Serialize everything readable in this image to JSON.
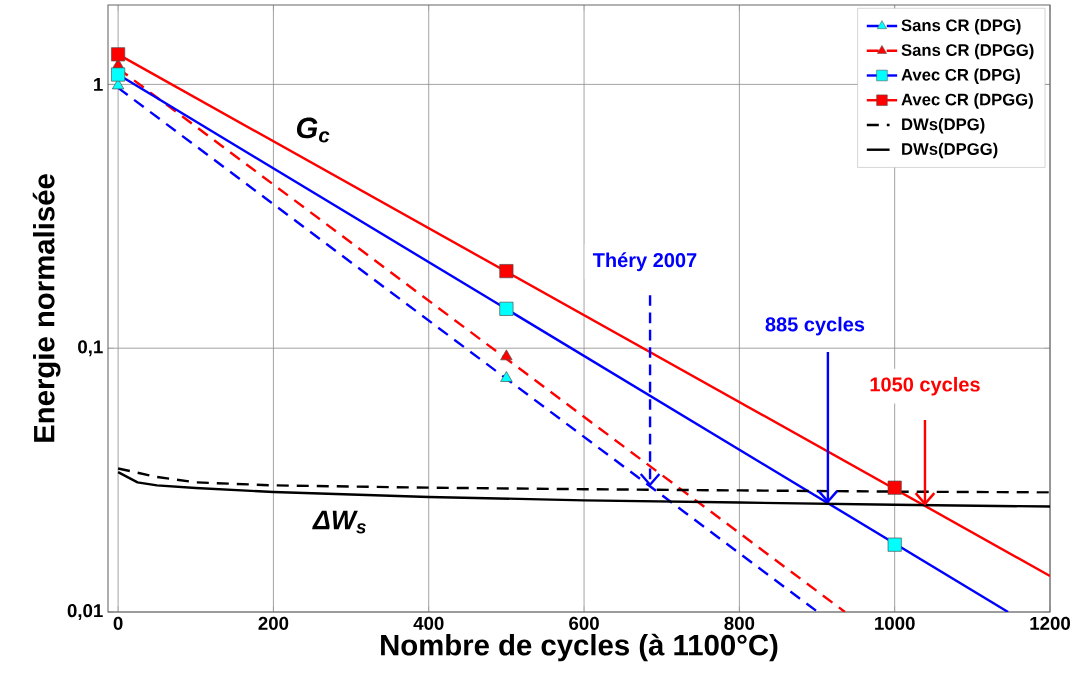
{
  "chart_data": {
    "type": "line",
    "xlabel": "Nombre de cycles (à 1100°C)",
    "ylabel": "Energie normalisée",
    "xlim": [
      -13,
      1200
    ],
    "xticks": [
      0,
      200,
      400,
      600,
      800,
      1000,
      1200
    ],
    "ylim": [
      0.01,
      2
    ],
    "yticks": [
      {
        "value": 0.01,
        "label": "0,01"
      },
      {
        "value": 0.1,
        "label": "0,1"
      },
      1
    ],
    "log": "y",
    "grid": true,
    "legend": "top right",
    "series": [
      {
        "color": "#0000ff",
        "line_style": "dashed",
        "x": [
          0,
          901
        ],
        "values": [
          0.97,
          0.01
        ]
      },
      {
        "color": "#ff0000",
        "line_style": "dashed",
        "x": [
          0,
          936
        ],
        "values": [
          1.15,
          0.01
        ]
      },
      {
        "color": "#0000ff",
        "line_style": "solid",
        "x": [
          0,
          1146
        ],
        "values": [
          1.09,
          0.01
        ]
      },
      {
        "color": "#ff0000",
        "line_style": "solid",
        "x": [
          0,
          1200
        ],
        "values": [
          1.3,
          0.0137
        ]
      },
      {
        "name": "Sans CR (DPG)",
        "type": "scatter",
        "color": "#00ffff",
        "marker": "triangle",
        "line_style": "dashed",
        "x": [
          0,
          500
        ],
        "values": [
          0.99,
          0.077
        ]
      },
      {
        "name": "Sans CR (DPGG)",
        "type": "scatter",
        "color": "#ff0000",
        "marker": "triangle",
        "line_style": "dashed",
        "x": [
          0,
          500
        ],
        "values": [
          1.18,
          0.093
        ]
      },
      {
        "name": "Avec CR (DPG)",
        "type": "scatter",
        "color": "#00ffff",
        "marker": "square",
        "line_style": "solid",
        "x": [
          0,
          500,
          1000
        ],
        "values": [
          1.09,
          0.141,
          0.018
        ]
      },
      {
        "name": "Avec CR (DPGG)",
        "type": "scatter",
        "color": "#ff0000",
        "marker": "square",
        "line_style": "solid",
        "x": [
          0,
          500,
          1000
        ],
        "values": [
          1.3,
          0.196,
          0.0296
        ]
      },
      {
        "name": "DWs(DPG)",
        "color": "#000000",
        "line_style": "dashed",
        "x": [
          0,
          50,
          100,
          200,
          400,
          600,
          800,
          1000,
          1200
        ],
        "values": [
          0.035,
          0.0325,
          0.031,
          0.0302,
          0.0296,
          0.0292,
          0.0289,
          0.0286,
          0.0284
        ]
      },
      {
        "name": "DWs(DPGG)",
        "color": "#000000",
        "line_style": "solid",
        "x": [
          0,
          25,
          50,
          100,
          200,
          400,
          600,
          800,
          1000,
          1200
        ],
        "values": [
          0.0339,
          0.031,
          0.0302,
          0.0295,
          0.0285,
          0.0273,
          0.0265,
          0.026,
          0.0255,
          0.0251
        ]
      }
    ],
    "annotations": [
      "G$_{c}$",
      "ΔW$_{s}$",
      {
        "text": "Théry 2007",
        "x": 685,
        "y": 0.0299
      },
      {
        "text": "885 cycles",
        "x": 914,
        "y": 0.0258
      },
      {
        "text": "1050 cycles",
        "x": 1039,
        "y": 0.0253
      }
    ]
  }
}
